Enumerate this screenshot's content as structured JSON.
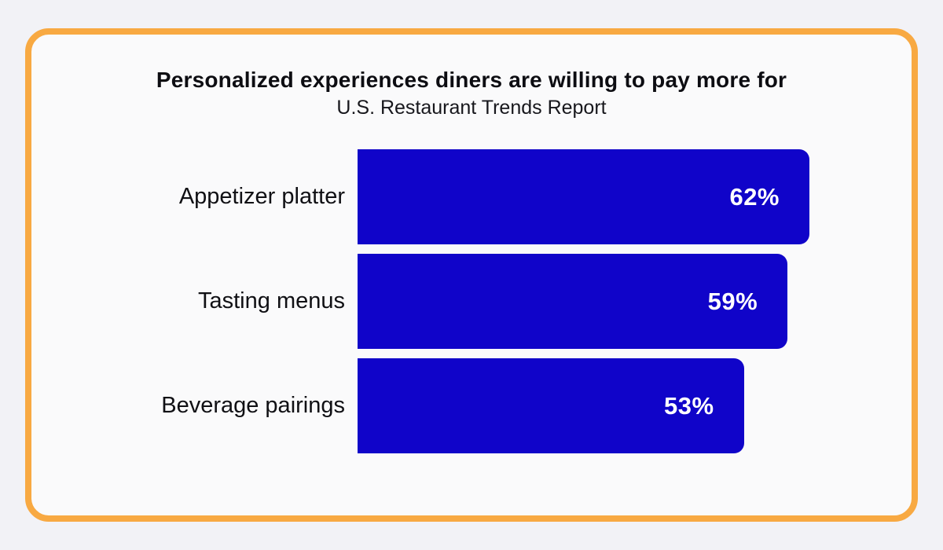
{
  "header": {
    "title": "Personalized experiences diners are willing to pay more for",
    "subtitle": "U.S. Restaurant Trends Report"
  },
  "chart_data": {
    "type": "bar",
    "orientation": "horizontal",
    "title": "Personalized experiences diners are willing to pay more for",
    "subtitle": "U.S. Restaurant Trends Report",
    "categories": [
      "Appetizer platter",
      "Tasting menus",
      "Beverage pairings"
    ],
    "values": [
      62,
      59,
      53
    ],
    "value_labels": [
      "62%",
      "59%",
      "53%"
    ],
    "value_suffix": "%",
    "xlim": [
      0,
      100
    ],
    "grid": false,
    "legend": false,
    "bar_color": "#1004c9",
    "value_label_color": "#ffffff"
  },
  "theme": {
    "page_bg": "#f2f2f6",
    "card_bg": "#fafafb",
    "card_border": "#f8a942",
    "text_color": "#101014"
  }
}
